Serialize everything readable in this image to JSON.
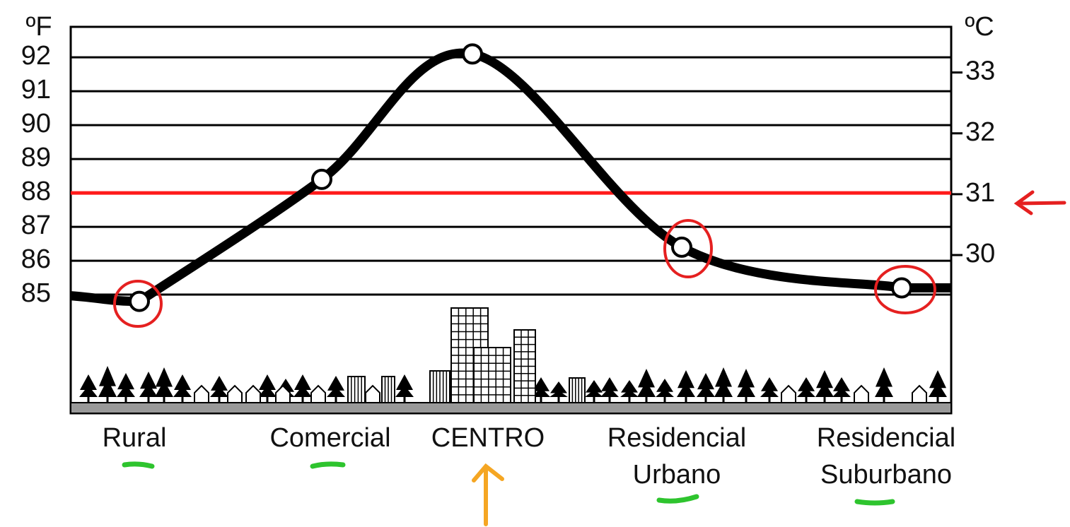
{
  "chart_data": {
    "type": "line",
    "y_label": "ºF",
    "y2_label": "ºC",
    "categories": [
      [
        "Rural"
      ],
      [
        "Comercial"
      ],
      [
        "CENTRO"
      ],
      [
        "Residencial",
        "Urbano"
      ],
      [
        "Residencial",
        "Suburbano"
      ]
    ],
    "values": [
      84.8,
      88.4,
      92.1,
      86.4,
      85.2
    ],
    "color": "#000000",
    "ylim": [
      81.5,
      92.9
    ],
    "yticks": [
      85,
      86,
      87,
      88,
      89,
      90,
      91,
      92
    ],
    "y2lim": [
      27.4,
      33.75
    ],
    "y2ticks": [
      30,
      31,
      32,
      33
    ],
    "reference_line": {
      "value": 88,
      "color": "#ff1a1a"
    },
    "grid": true
  }
}
